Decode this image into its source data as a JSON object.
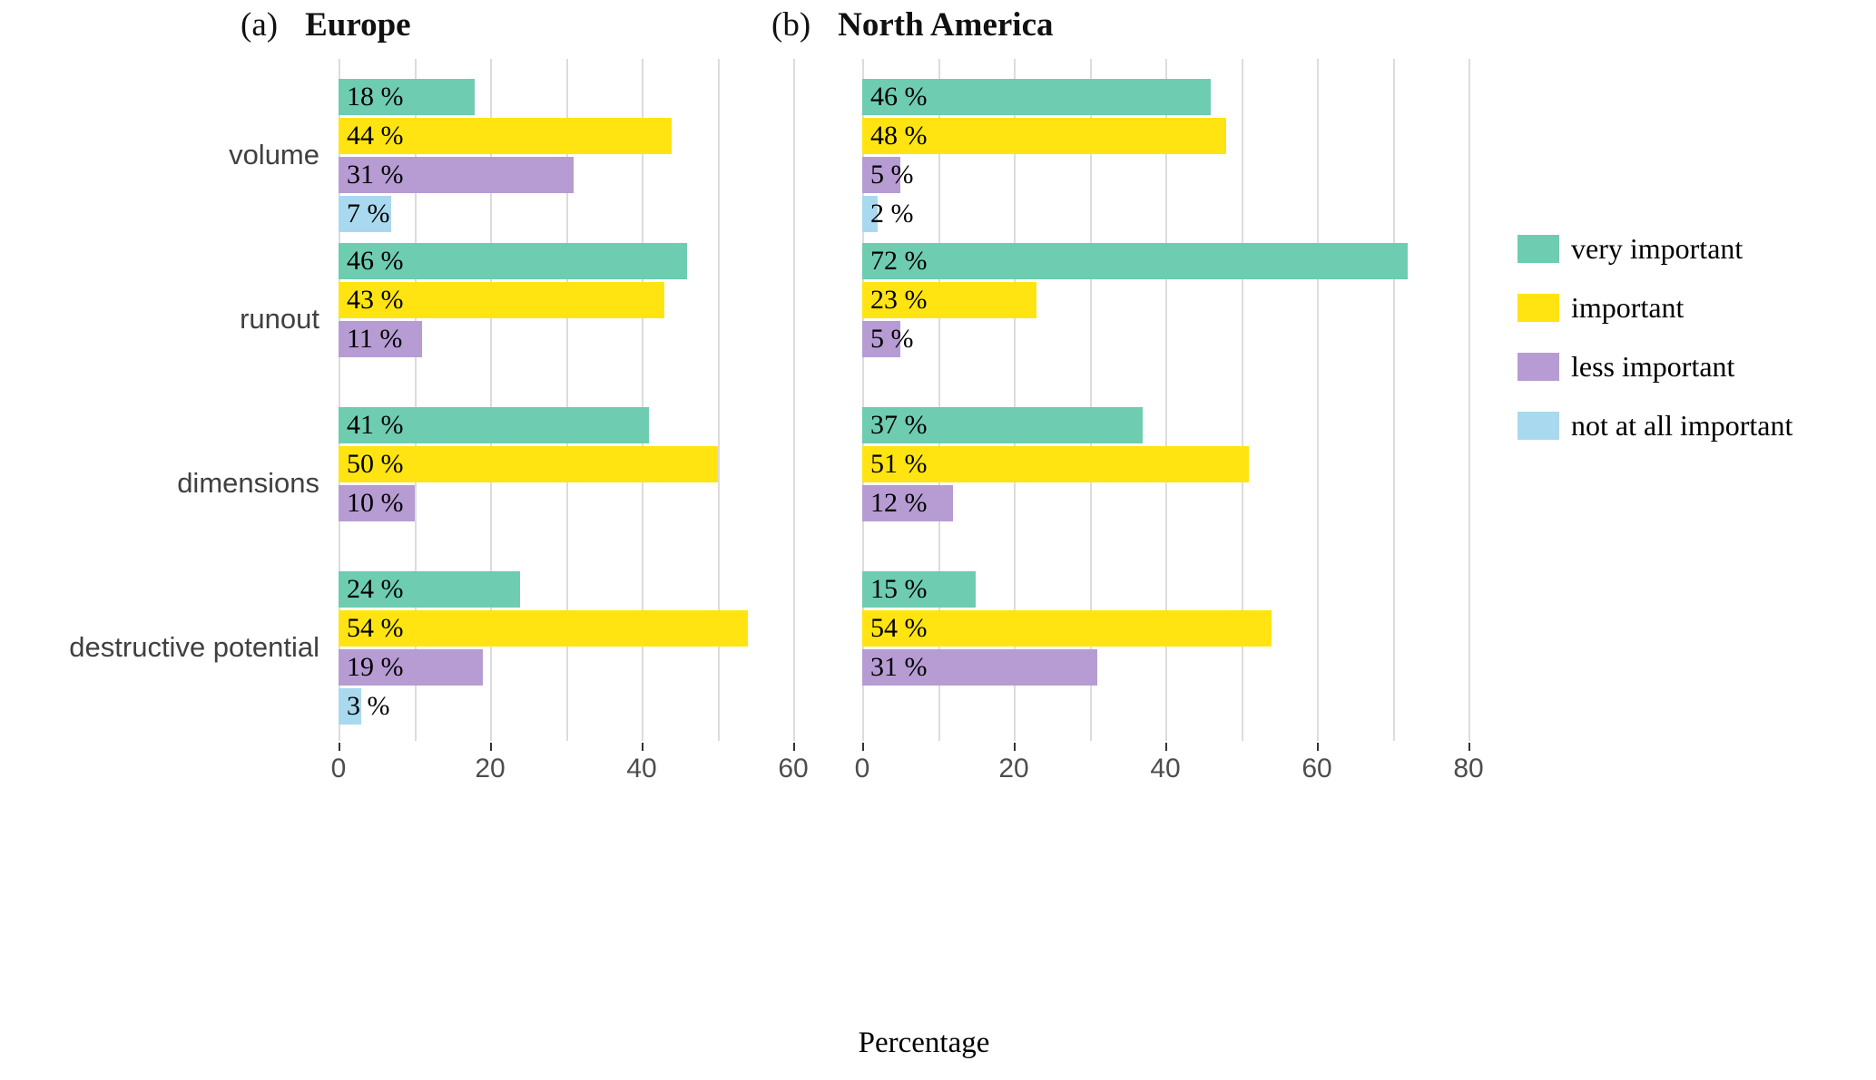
{
  "chart_data": {
    "type": "bar",
    "orientation": "horizontal",
    "xlabel": "Percentage",
    "value_suffix": " %",
    "grid": true,
    "legend_position": "right",
    "xlim": [
      0,
      80
    ],
    "categories": [
      "volume",
      "runout",
      "dimensions",
      "destructive potential"
    ],
    "series": [
      {
        "name": "very important",
        "color": "#6eccb1"
      },
      {
        "name": "important",
        "color": "#ffe411"
      },
      {
        "name": "less important",
        "color": "#b69cd2"
      },
      {
        "name": "not at all important",
        "color": "#a9d9ee"
      }
    ],
    "panels": [
      {
        "id": "a",
        "tag": "(a)",
        "title": "Europe",
        "xticks": [
          0,
          20,
          40,
          60
        ],
        "grid_max": 60,
        "values": [
          [
            18,
            44,
            31,
            7
          ],
          [
            46,
            43,
            11,
            null
          ],
          [
            41,
            50,
            10,
            null
          ],
          [
            24,
            54,
            19,
            3
          ]
        ]
      },
      {
        "id": "b",
        "tag": "(b)",
        "title": "North America",
        "xticks": [
          0,
          20,
          40,
          60,
          80
        ],
        "grid_max": 80,
        "values": [
          [
            46,
            48,
            5,
            2
          ],
          [
            72,
            23,
            5,
            null
          ],
          [
            37,
            51,
            12,
            null
          ],
          [
            15,
            54,
            31,
            null
          ]
        ]
      }
    ]
  }
}
